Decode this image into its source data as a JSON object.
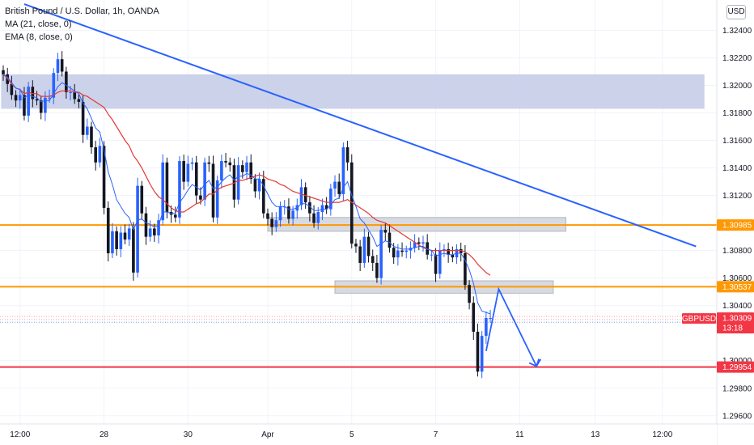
{
  "legend": {
    "symbol": "British Pound / U.S. Dollar, 1h, OANDA",
    "ma": "MA (21, close, 0)",
    "ema": "EMA (8, close, 0)"
  },
  "currency_button": "USD",
  "colors": {
    "up": "#2962ff",
    "down": "#131722",
    "ma": "#e53935",
    "ema": "#2962ff",
    "support": "#ff9800",
    "target": "#f23645",
    "zone": "#c5cde8",
    "trendline": "#2962ff",
    "price_label": "#f23645"
  },
  "chart_data": {
    "type": "candlestick",
    "symbol": "GBPUSD",
    "interval": "1h",
    "y_ticks": [
      "1.32400",
      "1.32200",
      "1.32000",
      "1.31800",
      "1.31600",
      "1.31400",
      "1.31200",
      "1.30800",
      "1.30600",
      "1.30400",
      "1.30000",
      "1.29800",
      "1.29600"
    ],
    "x_ticks": [
      "12:00",
      "28",
      "30",
      "Apr",
      "5",
      "7",
      "11",
      "13",
      "12:00"
    ],
    "ylim": [
      1.2954,
      1.3262
    ],
    "price_labels": [
      {
        "value": "1.30985",
        "color": "#ff9800"
      },
      {
        "value": "1.30537",
        "color": "#ff9800"
      },
      {
        "value": "1.29954",
        "color": "#f23645"
      }
    ],
    "current": {
      "symbol": "GBPUSD",
      "price": "1.30309",
      "countdown": "13:18"
    },
    "horizontal_levels": [
      {
        "name": "resistance",
        "y": 1.30985
      },
      {
        "name": "support",
        "y": 1.30537
      },
      {
        "name": "target",
        "y": 1.29954
      }
    ],
    "zones": [
      {
        "name": "supply-zone",
        "x": [
          -0.5,
          167
        ],
        "y": [
          1.3183,
          1.3208
        ]
      },
      {
        "name": "range-top",
        "x": [
          63,
          134
        ],
        "y": [
          1.3094,
          1.3104
        ]
      },
      {
        "name": "range-bottom",
        "x": [
          79,
          131
        ],
        "y": [
          1.3049,
          1.3058
        ]
      }
    ],
    "trendline": [
      [
        5,
        1.3259
      ],
      [
        165,
        1.3083
      ]
    ],
    "projection": [
      [
        115,
        1.3007
      ],
      [
        118,
        1.3052
      ],
      [
        127,
        1.2996
      ],
      [
        128,
        1.3001
      ]
    ],
    "closes": [
      1.3208,
      1.3201,
      1.3193,
      1.3189,
      1.3193,
      1.3178,
      1.3199,
      1.319,
      1.3189,
      1.318,
      1.3191,
      1.3191,
      1.3209,
      1.3219,
      1.321,
      1.3195,
      1.3195,
      1.319,
      1.3188,
      1.3164,
      1.317,
      1.3155,
      1.3144,
      1.3156,
      1.3111,
      1.3078,
      1.3094,
      1.3081,
      1.3093,
      1.3088,
      1.3096,
      1.3064,
      1.3127,
      1.3107,
      1.309,
      1.3096,
      1.3091,
      1.3102,
      1.3144,
      1.3108,
      1.3106,
      1.3104,
      1.3145,
      1.313,
      1.3143,
      1.3144,
      1.312,
      1.3117,
      1.3144,
      1.3143,
      1.3104,
      1.3131,
      1.3145,
      1.3144,
      1.3142,
      1.3117,
      1.3142,
      1.3137,
      1.3144,
      1.3132,
      1.3123,
      1.3132,
      1.3107,
      1.3103,
      1.3097,
      1.3102,
      1.3112,
      1.3112,
      1.3103,
      1.3109,
      1.3113,
      1.3126,
      1.3115,
      1.3107,
      1.31,
      1.3108,
      1.3113,
      1.311,
      1.3125,
      1.313,
      1.3121,
      1.3155,
      1.3144,
      1.3085,
      1.3083,
      1.3071,
      1.309,
      1.3076,
      1.3071,
      1.306,
      1.3095,
      1.3093,
      1.3082,
      1.3075,
      1.308,
      1.3079,
      1.308,
      1.3082,
      1.3086,
      1.3085,
      1.3086,
      1.3077,
      1.3077,
      1.3063,
      1.308,
      1.3081,
      1.3077,
      1.3075,
      1.3081,
      1.3078,
      1.3055,
      1.3042,
      1.3021,
      1.2992,
      1.3018,
      1.3031,
      1.3031
    ],
    "ema": [
      1.3208,
      1.3206,
      1.3202,
      1.3198,
      1.3197,
      1.3191,
      1.3193,
      1.3192,
      1.3191,
      1.3188,
      1.3189,
      1.3189,
      1.3194,
      1.3199,
      1.3202,
      1.32,
      1.3198,
      1.3196,
      1.3194,
      1.3187,
      1.3183,
      1.3176,
      1.3169,
      1.3166,
      1.3153,
      1.3137,
      1.3128,
      1.3117,
      1.3112,
      1.3107,
      1.3104,
      1.3095,
      1.3102,
      1.3103,
      1.31,
      1.3099,
      1.3097,
      1.3098,
      1.3108,
      1.3108,
      1.3107,
      1.3107,
      1.3115,
      1.3119,
      1.3124,
      1.3128,
      1.3126,
      1.3124,
      1.3128,
      1.3131,
      1.3125,
      1.3126,
      1.313,
      1.3133,
      1.3135,
      1.3131,
      1.3134,
      1.3134,
      1.3136,
      1.3135,
      1.3132,
      1.3132,
      1.3127,
      1.3121,
      1.3115,
      1.3112,
      1.3112,
      1.3112,
      1.311,
      1.311,
      1.3111,
      1.3114,
      1.3114,
      1.3112,
      1.3109,
      1.3109,
      1.311,
      1.311,
      1.3113,
      1.3117,
      1.3118,
      1.3126,
      1.313,
      1.312,
      1.3112,
      1.3103,
      1.31,
      1.3095,
      1.309,
      1.3083,
      1.3085,
      1.3087,
      1.3086,
      1.3083,
      1.3082,
      1.3081,
      1.3081,
      1.3081,
      1.3082,
      1.3083,
      1.3083,
      1.3081,
      1.308,
      1.3076,
      1.3077,
      1.3078,
      1.3077,
      1.3077,
      1.3078,
      1.3078,
      1.3073,
      1.3066,
      1.3056,
      1.3042,
      1.3036,
      1.3035,
      1.3034
    ],
    "ma": [
      1.3208,
      1.3205,
      1.3201,
      1.3198,
      1.3197,
      1.3194,
      1.3195,
      1.3194,
      1.3194,
      1.3192,
      1.3192,
      1.3192,
      1.3193,
      1.3195,
      1.3196,
      1.3196,
      1.3196,
      1.3195,
      1.3195,
      1.3193,
      1.3192,
      1.319,
      1.3188,
      1.3186,
      1.3184,
      1.3179,
      1.3175,
      1.317,
      1.3165,
      1.316,
      1.3156,
      1.3149,
      1.3145,
      1.314,
      1.3134,
      1.3128,
      1.3123,
      1.3119,
      1.3117,
      1.3114,
      1.3111,
      1.3109,
      1.3108,
      1.3108,
      1.311,
      1.3112,
      1.3114,
      1.3115,
      1.3118,
      1.3121,
      1.3121,
      1.3124,
      1.3126,
      1.3127,
      1.3128,
      1.3129,
      1.3131,
      1.3131,
      1.3132,
      1.3133,
      1.3134,
      1.3135,
      1.3134,
      1.3132,
      1.3131,
      1.313,
      1.3128,
      1.3127,
      1.3125,
      1.3123,
      1.3122,
      1.3121,
      1.312,
      1.3119,
      1.3118,
      1.3117,
      1.3116,
      1.3115,
      1.3115,
      1.3115,
      1.3115,
      1.3116,
      1.3117,
      1.3115,
      1.3113,
      1.3111,
      1.3109,
      1.3107,
      1.3104,
      1.3102,
      1.3101,
      1.31,
      1.3098,
      1.3096,
      1.3094,
      1.3092,
      1.309,
      1.3088,
      1.3086,
      1.3084,
      1.3082,
      1.3081,
      1.308,
      1.308,
      1.308,
      1.308,
      1.308,
      1.308,
      1.308,
      1.308,
      1.3079,
      1.3077,
      1.3074,
      1.307,
      1.3067,
      1.3064,
      1.3062
    ]
  }
}
